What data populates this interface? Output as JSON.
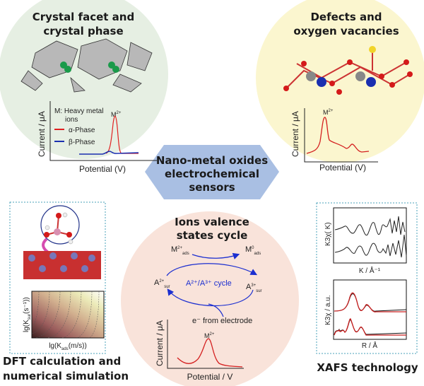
{
  "center": {
    "line1": "Nano-metal oxides",
    "line2": "electrochemical",
    "line3": "sensors",
    "color": "#a9bfe3"
  },
  "crystal": {
    "title1": "Crystal facet and",
    "title2": "crystal phase",
    "color": "#e6efe3",
    "ylabel": "Current / μA",
    "xlabel": "Potential (V)",
    "note1": "M: Heavy metal",
    "note2": "ions",
    "peak": "M",
    "peak_sup": "2+",
    "legend": [
      {
        "label": "α-Phase",
        "color": "#e02020"
      },
      {
        "label": "β-Phase",
        "color": "#1a2fb0"
      }
    ]
  },
  "defects": {
    "title1": "Defects and",
    "title2": "oxygen vacancies",
    "color": "#fbf6cf",
    "ylabel": "Current / μA",
    "xlabel": "Potential (V)",
    "peak": "M",
    "peak_sup": "2+"
  },
  "ions": {
    "title1": "Ions valence",
    "title2": "states cycle",
    "color": "#f9e3da",
    "m_ads_left": "M",
    "m_ads_left_sup": "2+",
    "m_ads_left_sub": "ads",
    "m_ads_right": "M",
    "m_ads_right_sup": "0",
    "m_ads_right_sub": "ads",
    "a_left": "A",
    "a_left_sup": "2+",
    "a_left_sub": "sur",
    "a_right": "A",
    "a_right_sup": "3+",
    "a_right_sub": "sur",
    "cycle": "A²⁺/A³⁺ cycle",
    "electrode": "e⁻ from electrode",
    "ylabel": "Current / μA",
    "xlabel": "Potential / V",
    "peak": "M",
    "peak_sup": "2+"
  },
  "dft": {
    "title1": "DFT calculation and",
    "title2": "numerical simulation",
    "ylabel": "lg(K",
    "ylabel_sub": "sur",
    "ylabel_rest": "(s⁻¹))",
    "xlabel": "lg(K",
    "xlabel_sub": "ads",
    "xlabel_rest": "(m/s))"
  },
  "xafs": {
    "title": "XAFS technology",
    "plot1": {
      "ylabel": "K3χ( K)",
      "xlabel": "K / Å⁻¹"
    },
    "plot2": {
      "ylabel": "K3χ / a.u.",
      "xlabel": "R / Å"
    }
  }
}
